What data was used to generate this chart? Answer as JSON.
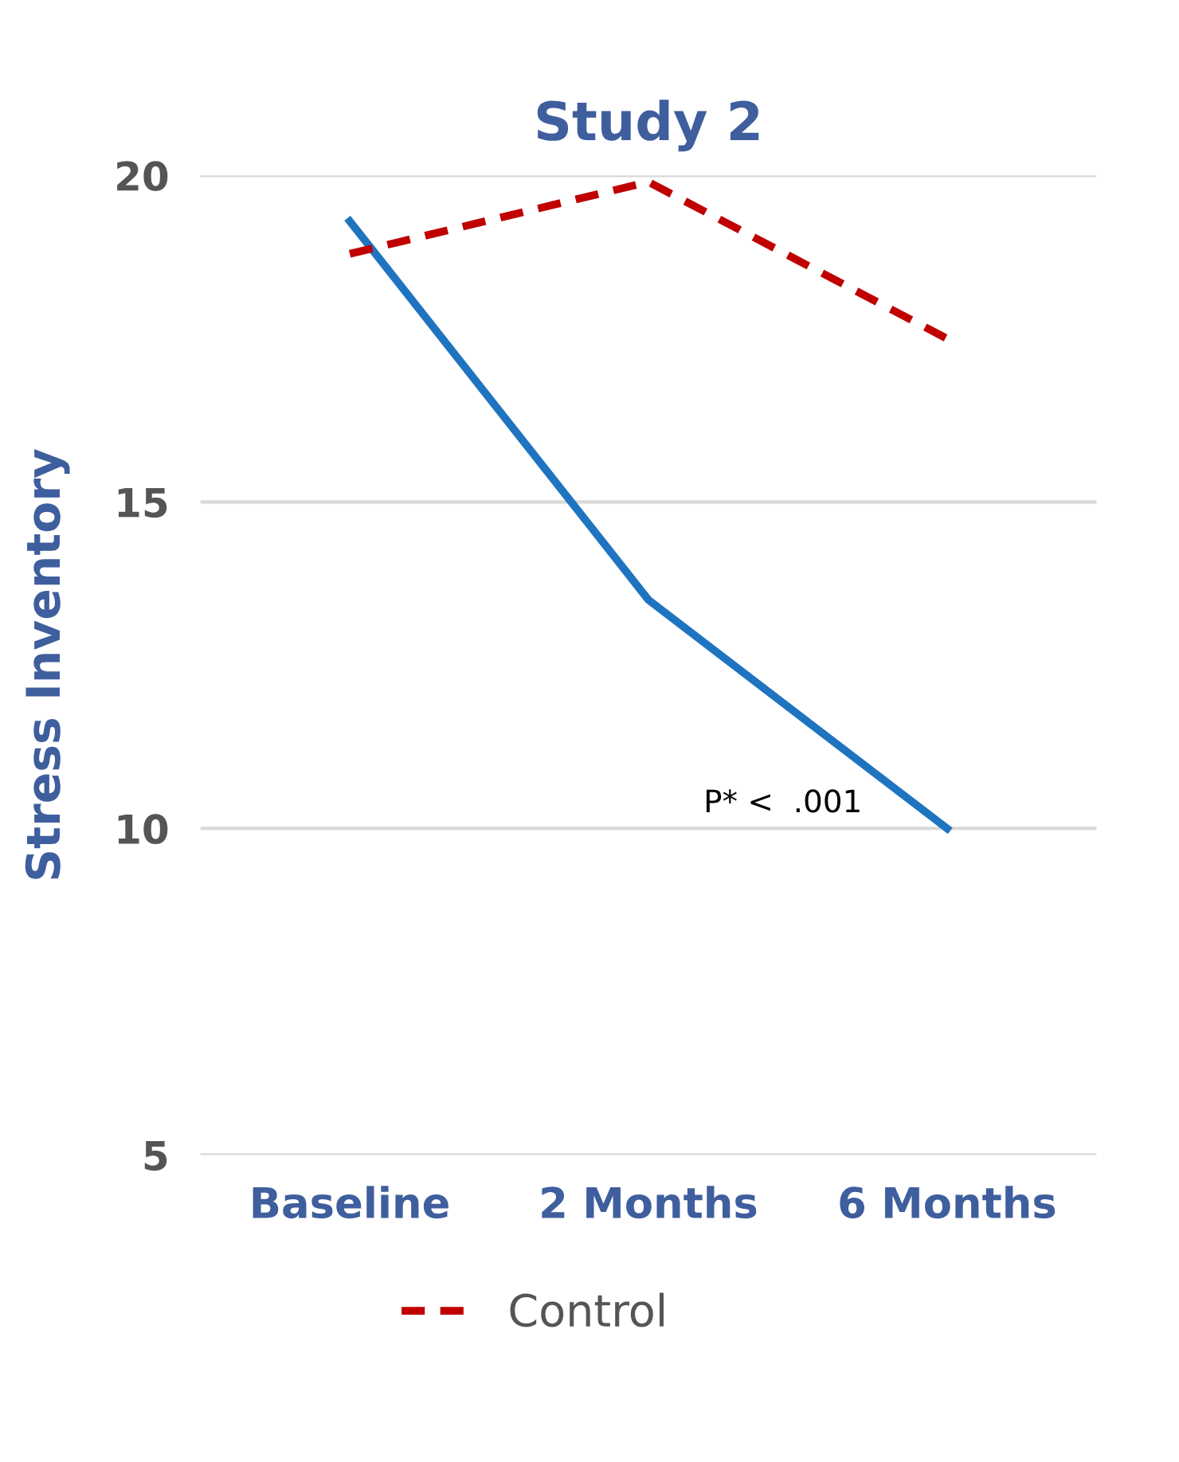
{
  "chart_data": {
    "type": "line",
    "title": "Study 2",
    "ylabel": "Stress Inventory",
    "categories": [
      "Baseline",
      "2 Months",
      "6 Months"
    ],
    "series": [
      {
        "color": "#1f74c0",
        "values": [
          19.3,
          13.5,
          10.0
        ],
        "line_style": "solid"
      },
      {
        "name": "Control",
        "color": "#c00000",
        "values": [
          18.8,
          19.9,
          17.5
        ],
        "line_style": "dashed"
      }
    ],
    "ylim": [
      5,
      20
    ],
    "yticks": [
      5,
      10,
      15,
      20
    ],
    "grid": "y",
    "legend": "bottom",
    "marker": "none",
    "annotations": [
      "P* <  .001"
    ]
  }
}
